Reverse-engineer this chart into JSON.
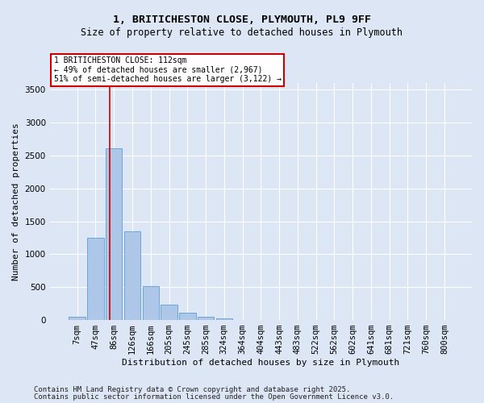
{
  "title_line1": "1, BRITICHESTON CLOSE, PLYMOUTH, PL9 9FF",
  "title_line2": "Size of property relative to detached houses in Plymouth",
  "xlabel": "Distribution of detached houses by size in Plymouth",
  "ylabel": "Number of detached properties",
  "categories": [
    "7sqm",
    "47sqm",
    "86sqm",
    "126sqm",
    "166sqm",
    "205sqm",
    "245sqm",
    "285sqm",
    "324sqm",
    "364sqm",
    "404sqm",
    "443sqm",
    "483sqm",
    "522sqm",
    "562sqm",
    "602sqm",
    "641sqm",
    "681sqm",
    "721sqm",
    "760sqm",
    "800sqm"
  ],
  "values": [
    50,
    1250,
    2610,
    1350,
    510,
    230,
    115,
    55,
    25,
    5,
    0,
    0,
    0,
    0,
    0,
    0,
    0,
    0,
    0,
    0,
    0
  ],
  "bar_color": "#aec6e8",
  "bar_edge_color": "#5a9fd4",
  "vline_color": "#cc0000",
  "vline_xindex": 1.75,
  "annotation_text": "1 BRITICHESTON CLOSE: 112sqm\n← 49% of detached houses are smaller (2,967)\n51% of semi-detached houses are larger (3,122) →",
  "annotation_box_color": "#ffffff",
  "annotation_box_edge": "#cc0000",
  "ylim": [
    0,
    3600
  ],
  "yticks": [
    0,
    500,
    1000,
    1500,
    2000,
    2500,
    3000,
    3500
  ],
  "background_color": "#dce6f5",
  "grid_color": "#ffffff",
  "footer_line1": "Contains HM Land Registry data © Crown copyright and database right 2025.",
  "footer_line2": "Contains public sector information licensed under the Open Government Licence v3.0.",
  "title_fontsize": 9.5,
  "subtitle_fontsize": 8.5,
  "axis_label_fontsize": 8,
  "tick_fontsize": 7.5,
  "annotation_fontsize": 7,
  "footer_fontsize": 6.5
}
